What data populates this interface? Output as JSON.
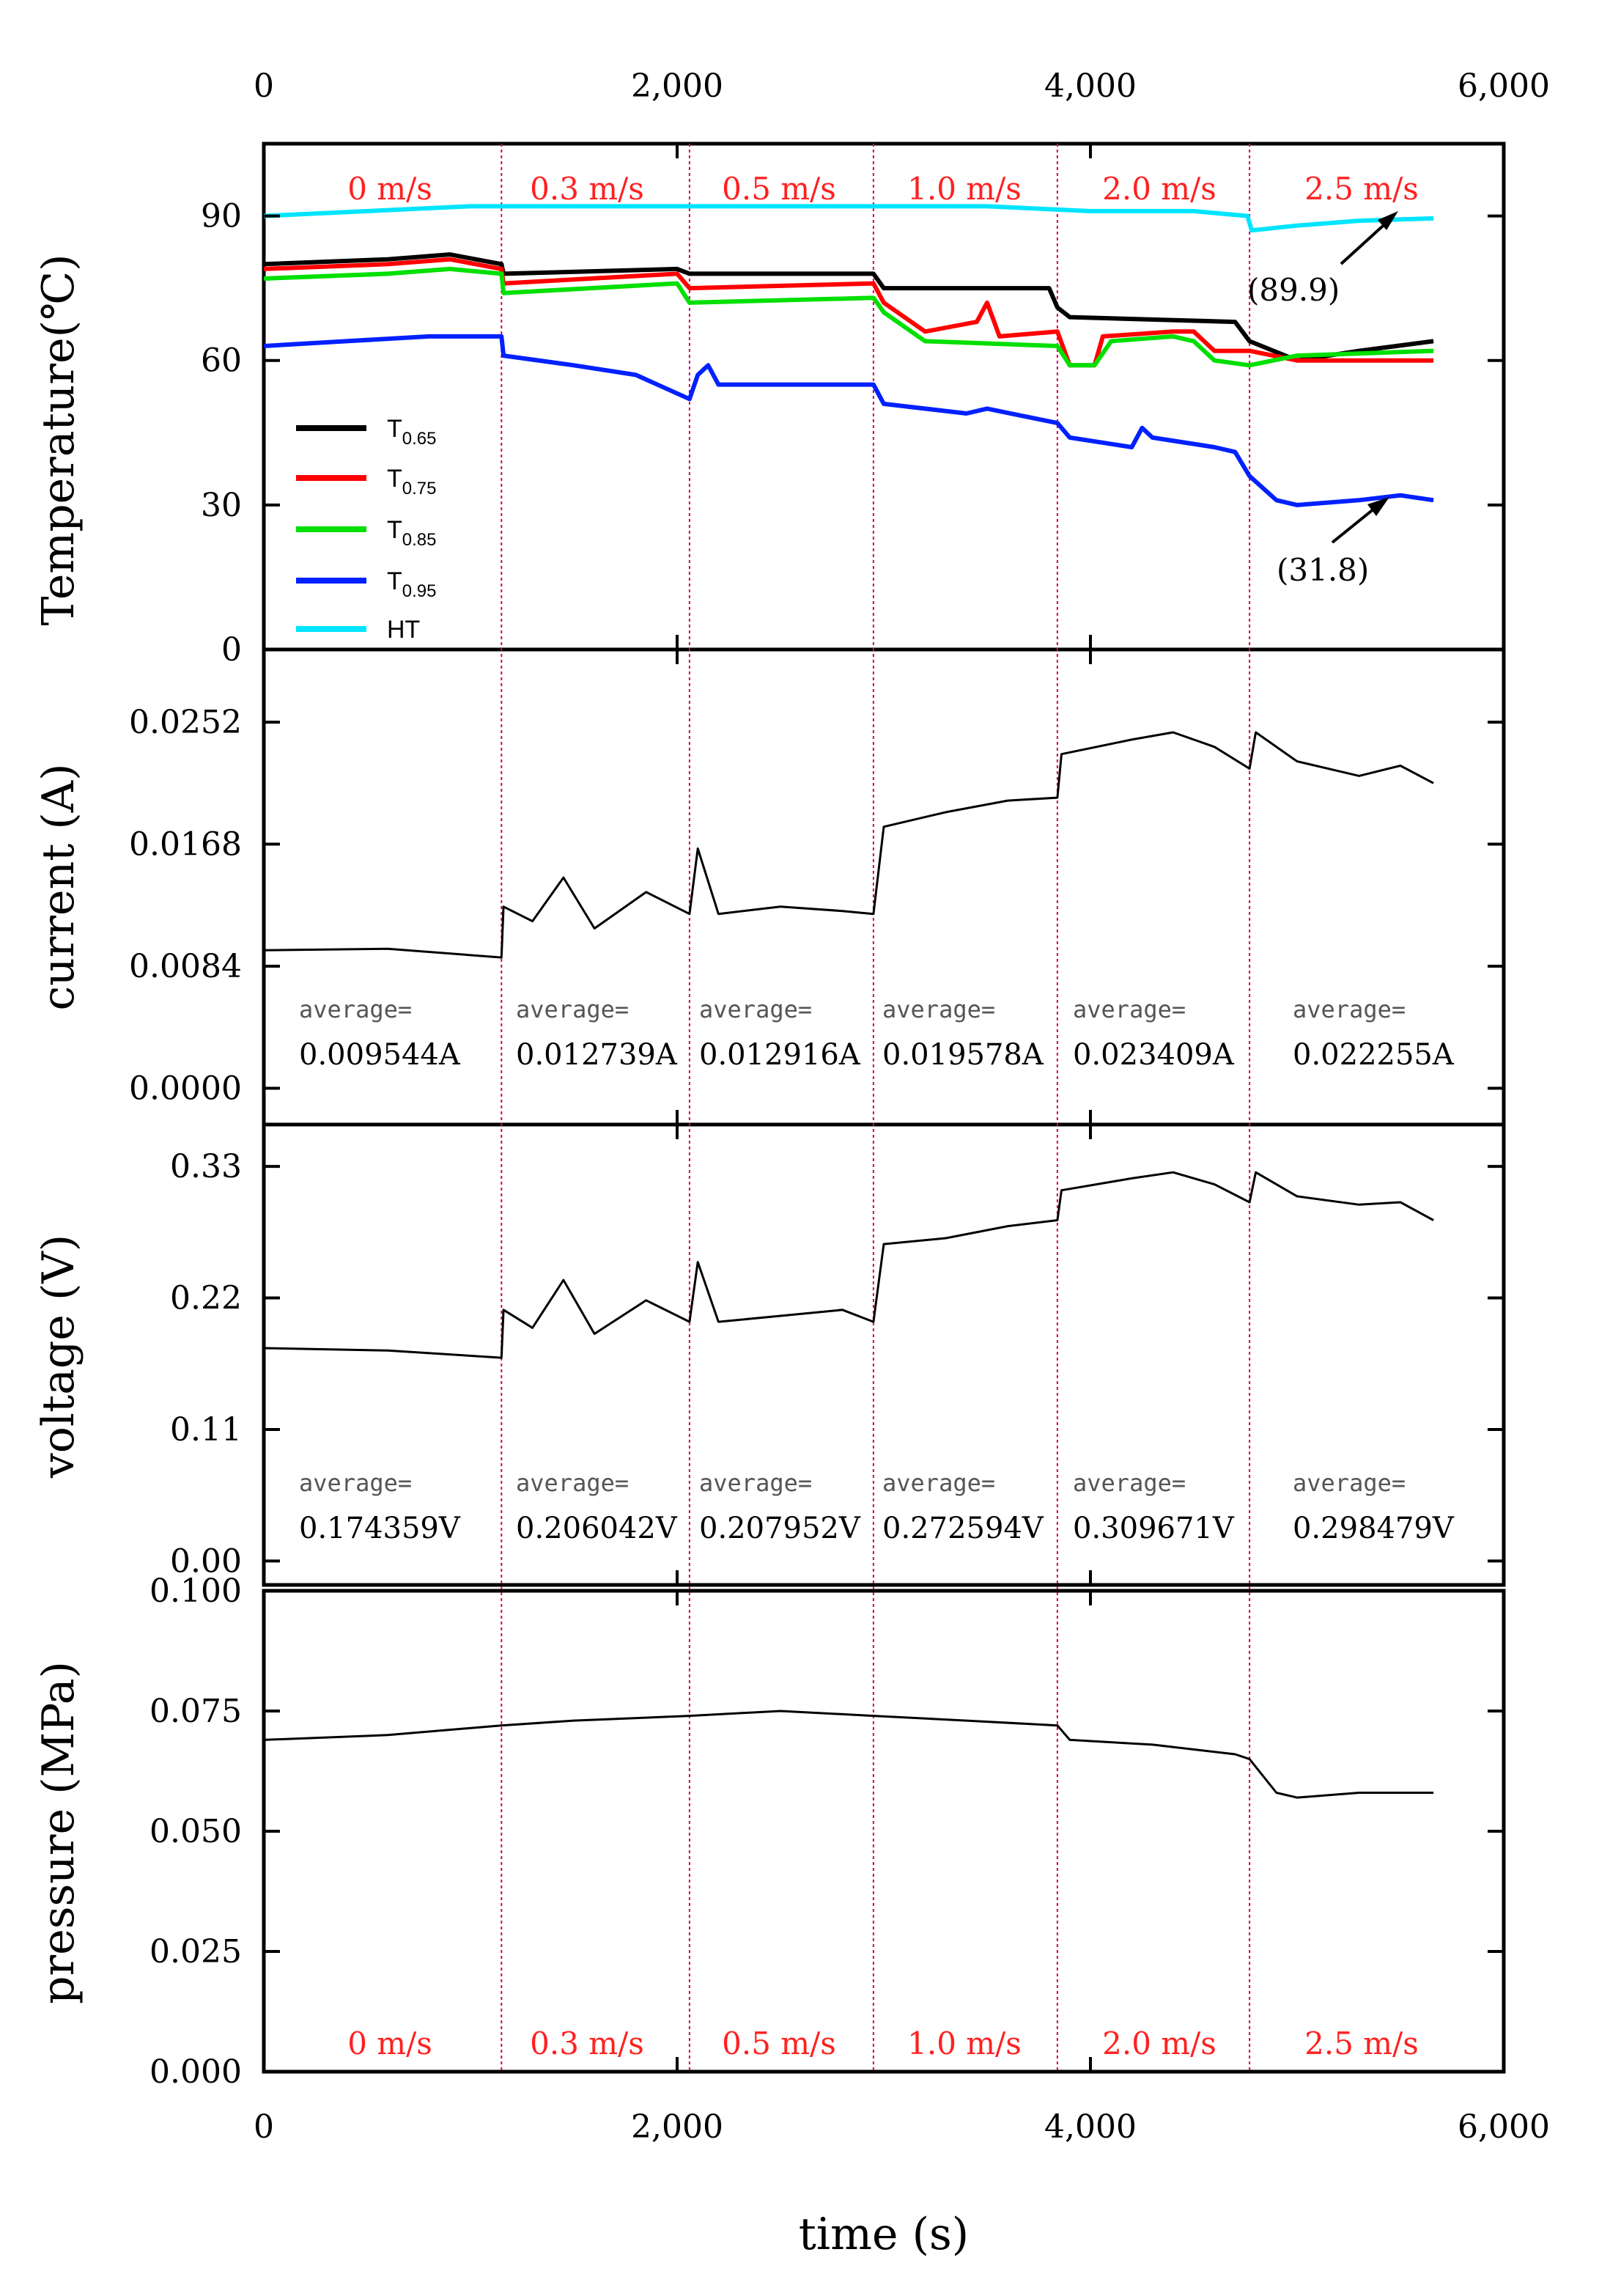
{
  "colors": {
    "T065": "#000000",
    "T075": "#ff0000",
    "T085": "#00e000",
    "T095": "#0020ff",
    "HT": "#00e5ff",
    "divider": "#cc0066",
    "speed_text": "#ff2020"
  },
  "chart_data": {
    "type": "line",
    "xlabel": "time (s)",
    "xlim": [
      0,
      6000
    ],
    "x_ticks": [
      0,
      2000,
      4000,
      6000
    ],
    "x_tick_labels": [
      "0",
      "2,000",
      "4,000",
      "6,000"
    ],
    "segment_boundaries": [
      1150,
      2060,
      2950,
      3840,
      4770
    ],
    "speeds": [
      "0 m/s",
      "0.3 m/s",
      "0.5 m/s",
      "1.0 m/s",
      "2.0 m/s",
      "2.5 m/s"
    ],
    "panels": [
      {
        "id": "temperature",
        "ylabel": "Temperature(℃)",
        "ylim": [
          0,
          105
        ],
        "y_ticks": [
          0,
          30,
          60,
          90
        ],
        "y_tick_labels": [
          "0",
          "30",
          "60",
          "90"
        ],
        "series": [
          {
            "name": "T0.65",
            "label_main": "T",
            "label_sub": "0.65",
            "color_key": "T065",
            "points": [
              [
                0,
                80
              ],
              [
                600,
                81
              ],
              [
                900,
                82
              ],
              [
                1150,
                80
              ],
              [
                1160,
                78
              ],
              [
                2000,
                79
              ],
              [
                2060,
                78
              ],
              [
                2950,
                78
              ],
              [
                3000,
                75
              ],
              [
                3800,
                75
              ],
              [
                3840,
                71
              ],
              [
                3900,
                69
              ],
              [
                4700,
                68
              ],
              [
                4770,
                64
              ],
              [
                5000,
                60
              ],
              [
                5300,
                62
              ],
              [
                5660,
                64
              ]
            ]
          },
          {
            "name": "T0.75",
            "label_main": "T",
            "label_sub": "0.75",
            "color_key": "T075",
            "points": [
              [
                0,
                79
              ],
              [
                600,
                80
              ],
              [
                900,
                81
              ],
              [
                1150,
                79
              ],
              [
                1160,
                76
              ],
              [
                2000,
                78
              ],
              [
                2060,
                75
              ],
              [
                2950,
                76
              ],
              [
                3000,
                72
              ],
              [
                3200,
                66
              ],
              [
                3450,
                68
              ],
              [
                3500,
                72
              ],
              [
                3560,
                65
              ],
              [
                3840,
                66
              ],
              [
                3900,
                59
              ],
              [
                4020,
                59
              ],
              [
                4060,
                65
              ],
              [
                4400,
                66
              ],
              [
                4500,
                66
              ],
              [
                4600,
                62
              ],
              [
                4770,
                62
              ],
              [
                5000,
                60
              ],
              [
                5660,
                60
              ]
            ]
          },
          {
            "name": "T0.85",
            "label_main": "T",
            "label_sub": "0.85",
            "color_key": "T085",
            "points": [
              [
                0,
                77
              ],
              [
                600,
                78
              ],
              [
                900,
                79
              ],
              [
                1150,
                78
              ],
              [
                1160,
                74
              ],
              [
                2000,
                76
              ],
              [
                2060,
                72
              ],
              [
                2950,
                73
              ],
              [
                3000,
                70
              ],
              [
                3200,
                64
              ],
              [
                3840,
                63
              ],
              [
                3900,
                59
              ],
              [
                4020,
                59
              ],
              [
                4100,
                64
              ],
              [
                4400,
                65
              ],
              [
                4500,
                64
              ],
              [
                4600,
                60
              ],
              [
                4770,
                59
              ],
              [
                5000,
                61
              ],
              [
                5660,
                62
              ]
            ]
          },
          {
            "name": "T0.95",
            "label_main": "T",
            "label_sub": "0.95",
            "color_key": "T095",
            "points": [
              [
                0,
                63
              ],
              [
                400,
                64
              ],
              [
                800,
                65
              ],
              [
                1150,
                65
              ],
              [
                1160,
                61
              ],
              [
                1500,
                59
              ],
              [
                1800,
                57
              ],
              [
                2060,
                52
              ],
              [
                2100,
                57
              ],
              [
                2150,
                59
              ],
              [
                2200,
                55
              ],
              [
                2950,
                55
              ],
              [
                3000,
                51
              ],
              [
                3400,
                49
              ],
              [
                3500,
                50
              ],
              [
                3840,
                47
              ],
              [
                3900,
                44
              ],
              [
                4200,
                42
              ],
              [
                4250,
                46
              ],
              [
                4300,
                44
              ],
              [
                4600,
                42
              ],
              [
                4700,
                41
              ],
              [
                4770,
                36
              ],
              [
                4900,
                31
              ],
              [
                5000,
                30
              ],
              [
                5300,
                31
              ],
              [
                5500,
                32
              ],
              [
                5660,
                31
              ]
            ]
          },
          {
            "name": "HT",
            "label_main": "HT",
            "label_sub": "",
            "color_key": "HT",
            "points": [
              [
                0,
                90
              ],
              [
                500,
                91
              ],
              [
                1000,
                92
              ],
              [
                1500,
                92
              ],
              [
                2000,
                92
              ],
              [
                2500,
                92
              ],
              [
                3000,
                92
              ],
              [
                3500,
                92
              ],
              [
                4000,
                91
              ],
              [
                4500,
                91
              ],
              [
                4760,
                90
              ],
              [
                4780,
                87
              ],
              [
                5000,
                88
              ],
              [
                5300,
                89
              ],
              [
                5660,
                89.5
              ]
            ]
          }
        ],
        "annotations": [
          {
            "text": "(89.9)",
            "value": 89.9
          },
          {
            "text": "(31.8)",
            "value": 31.8
          }
        ]
      },
      {
        "id": "current",
        "ylabel": "current (A)",
        "ylim": [
          -0.0025,
          0.0302
        ],
        "y_ticks": [
          0.0,
          0.0084,
          0.0168,
          0.0252
        ],
        "y_tick_labels": [
          "0.0000",
          "0.0084",
          "0.0168",
          "0.0252"
        ],
        "series": [
          {
            "name": "current",
            "color_key": "T065",
            "points": [
              [
                0,
                0.0095
              ],
              [
                600,
                0.0096
              ],
              [
                1150,
                0.009
              ],
              [
                1160,
                0.0125
              ],
              [
                1300,
                0.0115
              ],
              [
                1450,
                0.0145
              ],
              [
                1600,
                0.011
              ],
              [
                1850,
                0.0135
              ],
              [
                2060,
                0.012
              ],
              [
                2100,
                0.0165
              ],
              [
                2200,
                0.012
              ],
              [
                2500,
                0.0125
              ],
              [
                2800,
                0.0122
              ],
              [
                2950,
                0.012
              ],
              [
                3000,
                0.018
              ],
              [
                3300,
                0.019
              ],
              [
                3600,
                0.0198
              ],
              [
                3840,
                0.02
              ],
              [
                3860,
                0.023
              ],
              [
                4200,
                0.024
              ],
              [
                4400,
                0.0245
              ],
              [
                4600,
                0.0235
              ],
              [
                4770,
                0.022
              ],
              [
                4800,
                0.0245
              ],
              [
                5000,
                0.0225
              ],
              [
                5300,
                0.0215
              ],
              [
                5500,
                0.0222
              ],
              [
                5660,
                0.021
              ]
            ]
          }
        ],
        "averages": [
          {
            "caption": "average=",
            "value": "0.009544A"
          },
          {
            "caption": "average=",
            "value": "0.012739A"
          },
          {
            "caption": "average=",
            "value": "0.012916A"
          },
          {
            "caption": "average=",
            "value": "0.019578A"
          },
          {
            "caption": "average=",
            "value": "0.023409A"
          },
          {
            "caption": "average=",
            "value": "0.022255A"
          }
        ]
      },
      {
        "id": "voltage",
        "ylabel": "voltage (V)",
        "ylim": [
          -0.02,
          0.365
        ],
        "y_ticks": [
          0.0,
          0.11,
          0.22,
          0.33
        ],
        "y_tick_labels": [
          "0.00",
          "0.11",
          "0.22",
          "0.33"
        ],
        "series": [
          {
            "name": "voltage",
            "color_key": "T065",
            "points": [
              [
                0,
                0.178
              ],
              [
                600,
                0.176
              ],
              [
                1150,
                0.17
              ],
              [
                1160,
                0.21
              ],
              [
                1300,
                0.195
              ],
              [
                1450,
                0.235
              ],
              [
                1600,
                0.19
              ],
              [
                1850,
                0.218
              ],
              [
                2060,
                0.2
              ],
              [
                2100,
                0.25
              ],
              [
                2200,
                0.2
              ],
              [
                2500,
                0.205
              ],
              [
                2800,
                0.21
              ],
              [
                2950,
                0.2
              ],
              [
                3000,
                0.265
              ],
              [
                3300,
                0.27
              ],
              [
                3600,
                0.28
              ],
              [
                3840,
                0.285
              ],
              [
                3860,
                0.31
              ],
              [
                4200,
                0.32
              ],
              [
                4400,
                0.325
              ],
              [
                4600,
                0.315
              ],
              [
                4770,
                0.3
              ],
              [
                4800,
                0.325
              ],
              [
                5000,
                0.305
              ],
              [
                5300,
                0.298
              ],
              [
                5500,
                0.3
              ],
              [
                5660,
                0.285
              ]
            ]
          }
        ],
        "averages": [
          {
            "caption": "average=",
            "value": "0.174359V"
          },
          {
            "caption": "average=",
            "value": "0.206042V"
          },
          {
            "caption": "average=",
            "value": "0.207952V"
          },
          {
            "caption": "average=",
            "value": "0.272594V"
          },
          {
            "caption": "average=",
            "value": "0.309671V"
          },
          {
            "caption": "average=",
            "value": "0.298479V"
          }
        ]
      },
      {
        "id": "pressure",
        "ylabel": "pressure (MPa)",
        "ylim": [
          0.0,
          0.1
        ],
        "y_ticks": [
          0.0,
          0.025,
          0.05,
          0.075,
          0.1
        ],
        "y_tick_labels": [
          "0.000",
          "0.025",
          "0.050",
          "0.075",
          "0.100"
        ],
        "series": [
          {
            "name": "pressure",
            "color_key": "T065",
            "points": [
              [
                0,
                0.069
              ],
              [
                600,
                0.07
              ],
              [
                1150,
                0.072
              ],
              [
                1500,
                0.073
              ],
              [
                2060,
                0.074
              ],
              [
                2500,
                0.075
              ],
              [
                2950,
                0.074
              ],
              [
                3400,
                0.073
              ],
              [
                3840,
                0.072
              ],
              [
                3900,
                0.069
              ],
              [
                4300,
                0.068
              ],
              [
                4700,
                0.066
              ],
              [
                4770,
                0.065
              ],
              [
                4900,
                0.058
              ],
              [
                5000,
                0.057
              ],
              [
                5300,
                0.058
              ],
              [
                5660,
                0.058
              ]
            ]
          }
        ]
      }
    ]
  }
}
